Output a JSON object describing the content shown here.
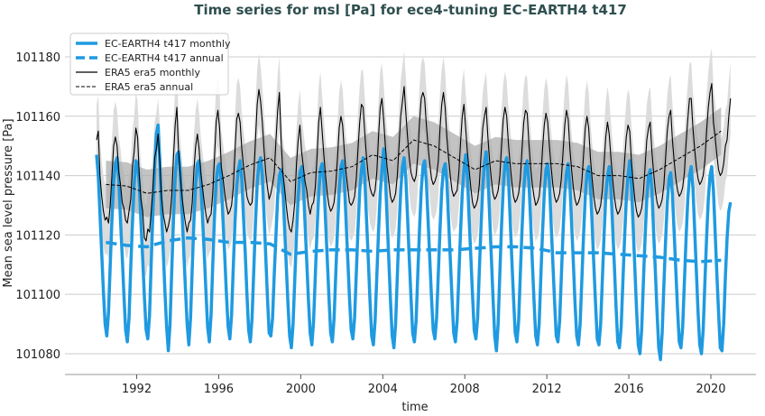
{
  "chart_data": {
    "type": "line",
    "title": "Time series for msl [Pa] for ece4-tuning EC-EARTH4 t417",
    "xlabel": "time",
    "ylabel": "Mean sea level pressure [Pa]",
    "xlim": [
      1988.5,
      2022.2
    ],
    "ylim": [
      101073,
      101188.5
    ],
    "xticks": [
      1992,
      1996,
      2000,
      2004,
      2008,
      2012,
      2016,
      2020
    ],
    "yticks": [
      101080,
      101100,
      101120,
      101140,
      101160,
      101180
    ],
    "grid": "horizontal",
    "legend_position": "top-left",
    "colors": {
      "model": "#1f9ae0",
      "obs": "#000000",
      "shading_monthly": "#dcdcdc",
      "shading_annual": "#a9a9a9",
      "title": "#2f4f4f"
    },
    "start_year": 1990,
    "series": [
      {
        "name": "EC-EARTH4 t417 monthly",
        "style": "solid-thick",
        "color": "#1f9ae0",
        "monthly": [
          [
            101147,
            101140,
            101127,
            101114,
            101101,
            101090,
            101086,
            101094,
            101110,
            101125,
            101138,
            101144
          ],
          [
            101146,
            101139,
            101125,
            101113,
            101100,
            101088,
            101084,
            101092,
            101109,
            101124,
            101137,
            101145
          ],
          [
            101144,
            101137,
            101124,
            101112,
            101099,
            101088,
            101085,
            101093,
            101111,
            101128,
            101142,
            101154
          ],
          [
            101157,
            101145,
            101128,
            101115,
            101101,
            101089,
            101081,
            101090,
            101108,
            101125,
            101139,
            101147
          ],
          [
            101148,
            101141,
            101128,
            101115,
            101102,
            101090,
            101083,
            101092,
            101109,
            101125,
            101137,
            101144
          ],
          [
            101145,
            101138,
            101126,
            101114,
            101101,
            101089,
            101084,
            101093,
            101110,
            101126,
            101138,
            101143
          ],
          [
            101144,
            101137,
            101125,
            101113,
            101100,
            101089,
            101085,
            101093,
            101109,
            101124,
            101136,
            101142
          ],
          [
            101145,
            101139,
            101126,
            101114,
            101100,
            101088,
            101084,
            101092,
            101108,
            101124,
            101137,
            101144
          ],
          [
            101146,
            101140,
            101127,
            101113,
            101099,
            101087,
            101086,
            101092,
            101107,
            101120,
            101133,
            101140
          ],
          [
            101142,
            101136,
            101123,
            101110,
            101097,
            101086,
            101082,
            101090,
            101105,
            101120,
            101133,
            101141
          ],
          [
            101143,
            101137,
            101124,
            101111,
            101098,
            101087,
            101083,
            101091,
            101106,
            101121,
            101134,
            101142
          ],
          [
            101144,
            101138,
            101125,
            101112,
            101099,
            101087,
            101084,
            101092,
            101107,
            101122,
            101135,
            101143
          ],
          [
            101145,
            101138,
            101125,
            101112,
            101099,
            101088,
            101085,
            101092,
            101107,
            101122,
            101135,
            101142
          ],
          [
            101146,
            101139,
            101125,
            101112,
            101098,
            101086,
            101083,
            101091,
            101106,
            101121,
            101134,
            101142
          ],
          [
            101149,
            101140,
            101126,
            101112,
            101098,
            101086,
            101082,
            101090,
            101106,
            101122,
            101135,
            101143
          ],
          [
            101146,
            101139,
            101126,
            101112,
            101099,
            101087,
            101084,
            101091,
            101107,
            101122,
            101135,
            101143
          ],
          [
            101145,
            101138,
            101125,
            101112,
            101099,
            101088,
            101085,
            101092,
            101107,
            101122,
            101135,
            101142
          ],
          [
            101144,
            101138,
            101125,
            101112,
            101099,
            101087,
            101084,
            101091,
            101106,
            101121,
            101134,
            101142
          ],
          [
            101147,
            101140,
            101126,
            101113,
            101100,
            101088,
            101085,
            101092,
            101108,
            101123,
            101136,
            101144
          ],
          [
            101148,
            101141,
            101127,
            101113,
            101099,
            101086,
            101081,
            101090,
            101107,
            101123,
            101136,
            101144
          ],
          [
            101146,
            101140,
            101126,
            101112,
            101099,
            101087,
            101084,
            101091,
            101107,
            101122,
            101135,
            101143
          ],
          [
            101145,
            101138,
            101125,
            101111,
            101098,
            101086,
            101083,
            101090,
            101106,
            101121,
            101134,
            101142
          ],
          [
            101144,
            101138,
            101124,
            101111,
            101098,
            101086,
            101084,
            101091,
            101106,
            101121,
            101134,
            101141
          ],
          [
            101144,
            101137,
            101124,
            101111,
            101097,
            101086,
            101083,
            101090,
            101105,
            101120,
            101133,
            101141
          ],
          [
            101143,
            101137,
            101124,
            101110,
            101097,
            101085,
            101083,
            101090,
            101105,
            101120,
            101133,
            101140
          ],
          [
            101143,
            101136,
            101123,
            101110,
            101096,
            101084,
            101082,
            101089,
            101104,
            101119,
            101132,
            101140
          ],
          [
            101145,
            101137,
            101123,
            101109,
            101095,
            101083,
            101080,
            101088,
            101104,
            101119,
            101132,
            101140
          ],
          [
            101142,
            101135,
            101121,
            101108,
            101094,
            101082,
            101078,
            101087,
            101103,
            101118,
            101131,
            101139
          ],
          [
            101141,
            101134,
            101121,
            101108,
            101095,
            101084,
            101082,
            101089,
            101104,
            101119,
            101132,
            101140
          ],
          [
            101143,
            101136,
            101122,
            101108,
            101094,
            101083,
            101080,
            101088,
            101104,
            101119,
            101132,
            101140
          ],
          [
            101143,
            101135,
            101121,
            101107,
            101094,
            101082,
            101081,
            101090,
            101106,
            101119,
            101128,
            101131
          ]
        ]
      },
      {
        "name": "EC-EARTH4 t417 annual",
        "style": "dashed-thick",
        "color": "#1f9ae0",
        "annual": [
          101117.5,
          101116.5,
          101116,
          101118,
          101119,
          101118.5,
          101117.5,
          101117.5,
          101117,
          101113.5,
          101114.5,
          101115,
          101115,
          101114.5,
          101115,
          101115,
          101115,
          101115,
          101115.5,
          101116,
          101116,
          101115.5,
          101114,
          101114,
          101114,
          101113.5,
          101113,
          101112.5,
          101111.5,
          101111,
          101111.5
        ]
      },
      {
        "name": "ERA5 era5 monthly",
        "style": "solid-thin",
        "color": "#000000",
        "shading_halfwidth": 12,
        "monthly": [
          [
            101152,
            101155,
            101140,
            101133,
            101128,
            101125,
            101126,
            101124,
            101130,
            101140,
            101150,
            101153
          ],
          [
            101150,
            101141,
            101137,
            101131,
            101129,
            101125,
            101124,
            101128,
            101132,
            101143,
            101148,
            101156
          ],
          [
            101153,
            101140,
            101132,
            101128,
            101119,
            101118,
            101122,
            101121,
            101128,
            101136,
            101146,
            101149
          ],
          [
            101154,
            101145,
            101133,
            101127,
            101124,
            101121,
            101123,
            101126,
            101133,
            101146,
            101157,
            101163
          ],
          [
            101148,
            101140,
            101133,
            101128,
            101124,
            101121,
            101124,
            101125,
            101131,
            101142,
            101150,
            101154
          ],
          [
            101149,
            101141,
            101136,
            101131,
            101127,
            101124,
            101126,
            101127,
            101134,
            101146,
            101158,
            101162
          ],
          [
            101156,
            101143,
            101139,
            101134,
            101130,
            101127,
            101128,
            101130,
            101136,
            101148,
            101159,
            101161
          ],
          [
            101158,
            101149,
            101143,
            101138,
            101133,
            101131,
            101130,
            101131,
            101140,
            101152,
            101164,
            101169
          ],
          [
            101165,
            101158,
            101149,
            101141,
            101136,
            101132,
            101134,
            101137,
            101141,
            101152,
            101162,
            101168
          ],
          [
            101152,
            101141,
            101136,
            101130,
            101125,
            101122,
            101121,
            101125,
            101131,
            101144,
            101152,
            101157
          ],
          [
            101148,
            101143,
            101138,
            101135,
            101130,
            101127,
            101130,
            101131,
            101136,
            101146,
            101158,
            101163
          ],
          [
            101155,
            101147,
            101140,
            101134,
            101130,
            101128,
            101129,
            101131,
            101137,
            101146,
            101156,
            101160
          ],
          [
            101157,
            101148,
            101141,
            101136,
            101131,
            101130,
            101131,
            101133,
            101139,
            101149,
            101158,
            101164
          ],
          [
            101163,
            101154,
            101146,
            101140,
            101136,
            101134,
            101133,
            101135,
            101141,
            101153,
            101163,
            101166
          ],
          [
            101159,
            101150,
            101143,
            101138,
            101133,
            101131,
            101132,
            101134,
            101140,
            101150,
            101160,
            101165
          ],
          [
            101170,
            101161,
            101153,
            101146,
            101141,
            101139,
            101138,
            101140,
            101147,
            101158,
            101166,
            101168
          ],
          [
            101166,
            101157,
            101150,
            101144,
            101139,
            101137,
            101138,
            101140,
            101145,
            101156,
            101164,
            101168
          ],
          [
            101163,
            101153,
            101146,
            101140,
            101135,
            101133,
            101134,
            101135,
            101141,
            101151,
            101160,
            101164
          ],
          [
            101156,
            101148,
            101142,
            101136,
            101131,
            101129,
            101130,
            101132,
            101137,
            101147,
            101156,
            101160
          ],
          [
            101163,
            101153,
            101145,
            101139,
            101134,
            101132,
            101133,
            101135,
            101140,
            101150,
            101159,
            101163
          ],
          [
            101160,
            101151,
            101144,
            101138,
            101133,
            101131,
            101132,
            101134,
            101139,
            101149,
            101158,
            101162
          ],
          [
            101161,
            101151,
            101143,
            101137,
            101133,
            101130,
            101131,
            101133,
            101139,
            101149,
            101157,
            101161
          ],
          [
            101158,
            101150,
            101143,
            101137,
            101133,
            101131,
            101132,
            101134,
            101139,
            101148,
            101157,
            101162
          ],
          [
            101159,
            101149,
            101142,
            101136,
            101132,
            101130,
            101131,
            101133,
            101138,
            101147,
            101156,
            101160
          ],
          [
            101156,
            101146,
            101139,
            101133,
            101129,
            101127,
            101128,
            101130,
            101135,
            101144,
            101153,
            101158
          ],
          [
            101154,
            101146,
            101139,
            101133,
            101129,
            101127,
            101128,
            101130,
            101136,
            101145,
            101153,
            101157
          ],
          [
            101155,
            101145,
            101138,
            101132,
            101128,
            101126,
            101127,
            101129,
            101134,
            101143,
            101152,
            101156
          ],
          [
            101158,
            101148,
            101141,
            101135,
            101131,
            101129,
            101130,
            101132,
            101137,
            101146,
            101155,
            101160
          ],
          [
            101162,
            101152,
            101145,
            101139,
            101135,
            101133,
            101134,
            101136,
            101141,
            101151,
            101159,
            101166
          ],
          [
            101166,
            101156,
            101149,
            101143,
            101139,
            101137,
            101138,
            101140,
            101145,
            101155,
            101163,
            101168
          ],
          [
            101171,
            101158,
            101153,
            101147,
            101142,
            101140,
            101141,
            101144,
            101150,
            101152,
            101160,
            101166
          ]
        ]
      },
      {
        "name": "ERA5 era5 annual",
        "style": "dashed-thin",
        "color": "#000000",
        "shading_halfwidth": 8,
        "annual": [
          101137,
          101136.5,
          101134,
          101135,
          101135,
          101137,
          101140,
          101143.5,
          101146,
          101138,
          101141,
          101141.5,
          101143,
          101147,
          101145,
          101152,
          101150,
          101146,
          101142,
          101145,
          101144,
          101144,
          101144,
          101143,
          101140,
          101140,
          101139,
          101142,
          101146,
          101150,
          101155
        ]
      }
    ]
  }
}
